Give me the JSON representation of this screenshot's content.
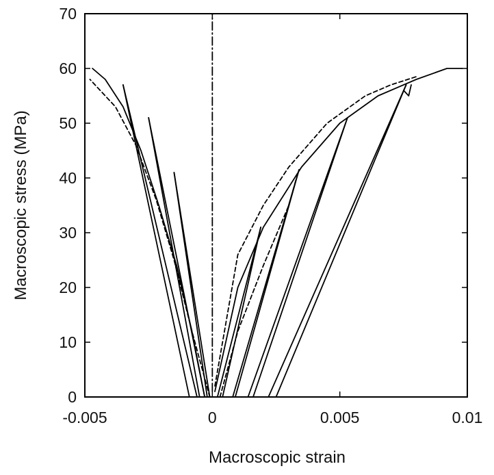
{
  "chart_data": {
    "type": "line",
    "title": "",
    "xlabel": "Macroscopic strain",
    "ylabel": "Macroscopic stress (MPa)",
    "xlim": [
      -0.005,
      0.01
    ],
    "ylim": [
      0,
      70
    ],
    "xticks": [
      {
        "value": -0.005,
        "label": "-0.005"
      },
      {
        "value": 0,
        "label": "0"
      },
      {
        "value": 0.005,
        "label": "0.005"
      },
      {
        "value": 0.01,
        "label": "0.01"
      }
    ],
    "yticks": [
      {
        "value": 0,
        "label": "0"
      },
      {
        "value": 10,
        "label": "10"
      },
      {
        "value": 20,
        "label": "20"
      },
      {
        "value": 30,
        "label": "30"
      },
      {
        "value": 40,
        "label": "40"
      },
      {
        "value": 50,
        "label": "50"
      },
      {
        "value": 60,
        "label": "60"
      },
      {
        "value": 70,
        "label": "70"
      }
    ],
    "grid": false,
    "legend": "none",
    "colors": {
      "line": "#000000",
      "axis": "#000000",
      "text": "#111111",
      "background": "#ffffff"
    },
    "series": [
      {
        "style": "solid",
        "x": [
          -0.0003,
          -0.0008,
          -0.0014,
          -0.0021,
          -0.0028,
          -0.0035,
          -0.0042,
          -0.0047
        ],
        "y": [
          0,
          12,
          24,
          35,
          45,
          53,
          58,
          60
        ]
      },
      {
        "style": "dash-dot",
        "x": [
          0,
          0
        ],
        "y": [
          1,
          70
        ]
      },
      {
        "style": "dashed",
        "x": [
          -0.0001,
          -0.0008,
          -0.0015,
          -0.0022,
          -0.003,
          -0.0038,
          -0.0048
        ],
        "y": [
          0,
          12,
          25,
          36,
          46,
          53,
          58
        ]
      },
      {
        "style": "solid",
        "x": [
          0.0001,
          0.001,
          0.002,
          0.0035,
          0.005,
          0.0065,
          0.008,
          0.0092,
          0.0098
        ],
        "y": [
          1,
          20,
          31,
          42,
          50,
          55,
          58,
          60,
          60
        ]
      },
      {
        "style": "dashed",
        "x": [
          0.0001,
          0.001,
          0.002,
          0.003,
          0.0045,
          0.006,
          0.007,
          0.008
        ],
        "y": [
          2,
          26,
          35,
          42,
          50,
          55,
          57,
          58.5
        ]
      },
      {
        "style": "dashed",
        "x": [
          0.0003,
          0.001,
          0.002,
          0.003,
          0.0033
        ],
        "y": [
          0,
          12,
          24,
          35,
          40
        ]
      },
      {
        "style": "solid",
        "x": [
          -0.0035,
          -0.0009
        ],
        "y": [
          57,
          0
        ]
      },
      {
        "style": "solid",
        "x": [
          -0.0035,
          -0.0006
        ],
        "y": [
          57,
          0
        ]
      },
      {
        "style": "solid",
        "x": [
          -0.0025,
          -0.0005
        ],
        "y": [
          51,
          0
        ]
      },
      {
        "style": "solid",
        "x": [
          -0.0025,
          -0.0003
        ],
        "y": [
          51,
          0
        ]
      },
      {
        "style": "solid",
        "x": [
          -0.0015,
          -0.0002
        ],
        "y": [
          41,
          0
        ]
      },
      {
        "style": "solid",
        "x": [
          -0.0015,
          -0.0001
        ],
        "y": [
          41,
          0
        ]
      },
      {
        "style": "solid",
        "x": [
          0.0019,
          0.0002
        ],
        "y": [
          31,
          0
        ]
      },
      {
        "style": "solid",
        "x": [
          0.0019,
          0.0004
        ],
        "y": [
          31,
          0
        ]
      },
      {
        "style": "solid",
        "x": [
          0.0034,
          0.0008
        ],
        "y": [
          41.5,
          0
        ]
      },
      {
        "style": "solid",
        "x": [
          0.0034,
          0.0009
        ],
        "y": [
          41.5,
          0
        ]
      },
      {
        "style": "solid",
        "x": [
          0.0053,
          0.0014
        ],
        "y": [
          51,
          0
        ]
      },
      {
        "style": "solid",
        "x": [
          0.0053,
          0.0016
        ],
        "y": [
          51,
          0
        ]
      },
      {
        "style": "solid",
        "x": [
          0.0076,
          0.0022
        ],
        "y": [
          57,
          0
        ]
      },
      {
        "style": "solid",
        "x": [
          0.0076,
          0.0025
        ],
        "y": [
          57,
          0
        ]
      },
      {
        "style": "solid",
        "x": [
          0.0075,
          0.0077,
          0.0078
        ],
        "y": [
          56,
          55,
          57
        ]
      }
    ]
  }
}
